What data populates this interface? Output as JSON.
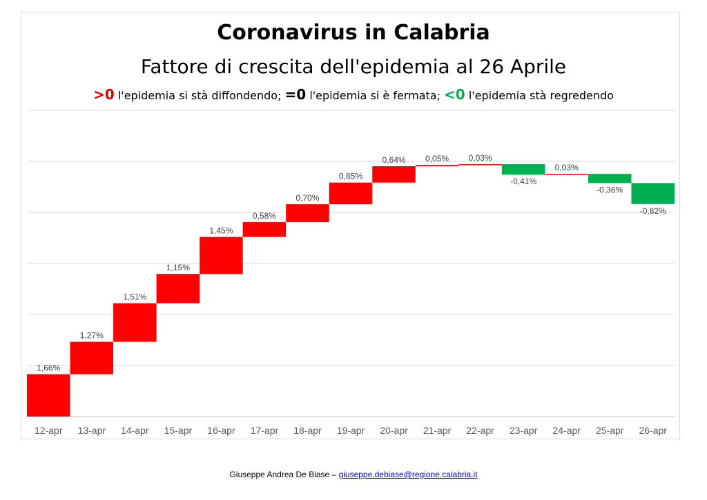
{
  "chart_data": {
    "type": "waterfall",
    "title": "Coronavirus in Calabria",
    "subtitle": "Fattore di crescita dell'epidemia al 26 Aprile",
    "legend_note": {
      "pos_symbol": ">0",
      "pos_text": " l'epidemia si stà diffondendo; ",
      "zero_symbol": "=0",
      "zero_text": " l'epidemia si è fermata; ",
      "neg_symbol": "<0",
      "neg_text": " l'epidemia stà regredendo"
    },
    "categories": [
      "12-apr",
      "13-apr",
      "14-apr",
      "15-apr",
      "16-apr",
      "17-apr",
      "18-apr",
      "19-apr",
      "20-apr",
      "21-apr",
      "22-apr",
      "23-apr",
      "24-apr",
      "25-apr",
      "26-apr"
    ],
    "values": [
      1.66,
      1.27,
      1.51,
      1.15,
      1.45,
      0.58,
      0.7,
      0.85,
      0.64,
      0.05,
      0.03,
      -0.41,
      0.03,
      -0.36,
      -0.82
    ],
    "data_labels": [
      "1,66%",
      "1,27%",
      "1,51%",
      "1,15%",
      "1,45%",
      "0,58%",
      "0,70%",
      "0,85%",
      "0,64%",
      "0,05%",
      "0,03%",
      "-0,41%",
      "0,03%",
      "-0,36%",
      "-0,82%"
    ],
    "unit": "%",
    "ylim": [
      0,
      12
    ],
    "grid": true,
    "colors": {
      "positive": "#ff0000",
      "negative": "#00b050",
      "grid": "#d9d9d9",
      "axis": "#bfbfbf",
      "label": "#404040"
    }
  },
  "footer": {
    "author": "Giuseppe Andrea De Biase – ",
    "email": "giuseppe.debiase@regione.calabria.it"
  }
}
